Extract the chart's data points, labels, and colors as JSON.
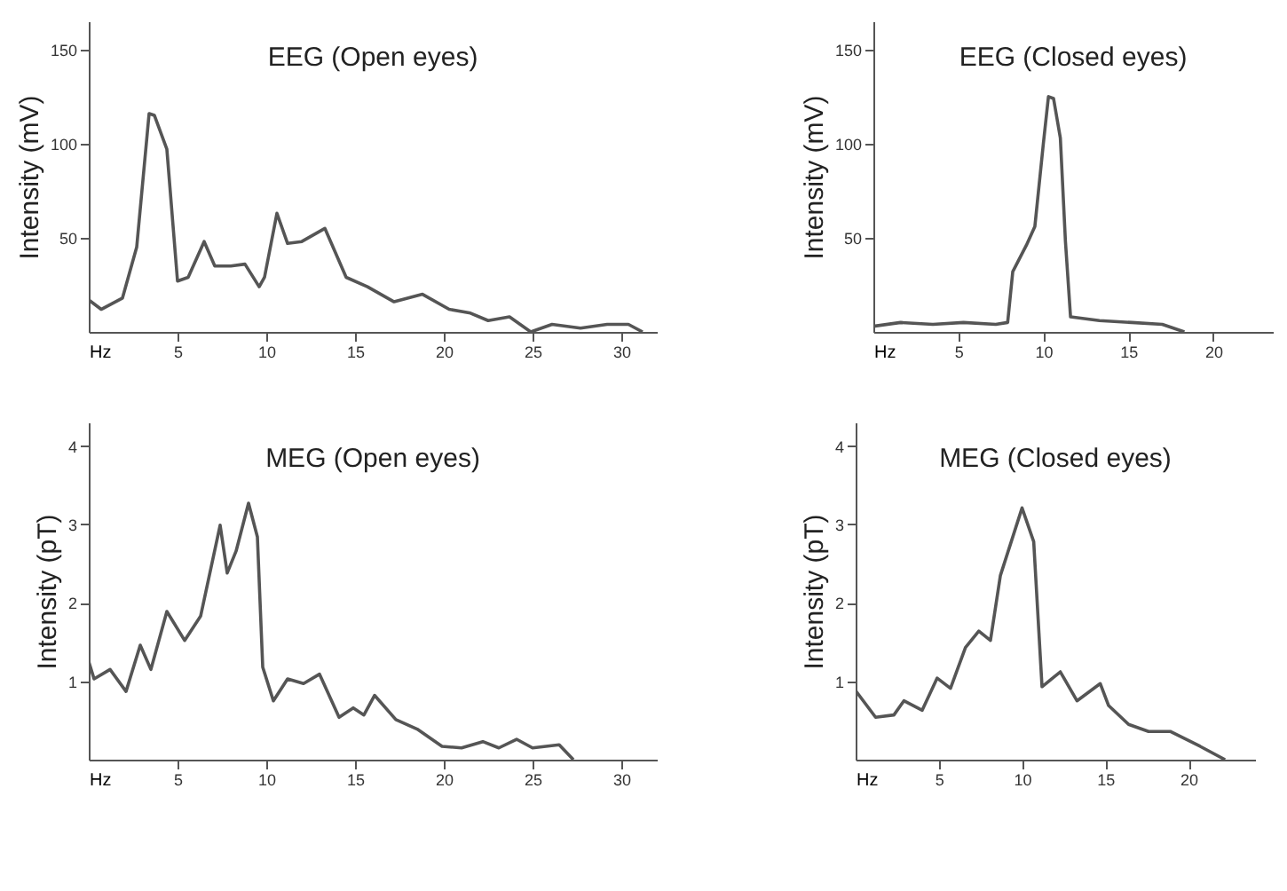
{
  "chart_data": [
    {
      "type": "line",
      "title": "EEG (Open eyes)",
      "xlabel": "Hz",
      "ylabel": "Intensity (mV)",
      "xlim": [
        0,
        32
      ],
      "xticks": [
        5,
        10,
        15,
        20,
        25,
        30
      ],
      "ylim": [
        0,
        165
      ],
      "yticks": [
        50,
        100,
        150
      ],
      "grid": false,
      "marker": "none",
      "line_style": "solid",
      "series": [
        {
          "color": "#555555",
          "x": [
            0,
            0.7,
            1.9,
            2.7,
            3.4,
            3.7,
            4.4,
            5.0,
            5.6,
            6.5,
            7.1,
            8.0,
            8.8,
            9.6,
            9.9,
            10.6,
            11.2,
            12.0,
            13.3,
            14.5,
            15.7,
            17.2,
            18.8,
            20.3,
            21.5,
            22.5,
            23.7,
            24.9,
            26.1,
            27.7,
            29.2,
            30.4,
            31.2
          ],
          "values": [
            17,
            12,
            18,
            45,
            116,
            115,
            97,
            27,
            29,
            48,
            35,
            35,
            36,
            24,
            29,
            63,
            47,
            48,
            55,
            29,
            24,
            16,
            20,
            12,
            10,
            6,
            8,
            0,
            4,
            2,
            4,
            4,
            0
          ]
        }
      ]
    },
    {
      "type": "line",
      "title": "EEG (Closed eyes)",
      "xlabel": "Hz",
      "ylabel": "Intensity (mV)",
      "xlim": [
        0,
        23.5
      ],
      "xticks": [
        5,
        10,
        15,
        20
      ],
      "ylim": [
        0,
        165
      ],
      "yticks": [
        50,
        100,
        150
      ],
      "grid": false,
      "marker": "none",
      "line_style": "solid",
      "series": [
        {
          "color": "#555555",
          "x": [
            0,
            1.6,
            3.5,
            5.3,
            7.2,
            7.9,
            8.2,
            9.0,
            9.5,
            10.0,
            10.3,
            10.6,
            11.0,
            11.3,
            11.6,
            13.3,
            15.2,
            17.0,
            18.3
          ],
          "values": [
            3,
            5,
            4,
            5,
            4,
            5,
            32,
            46,
            56,
            100,
            125,
            124,
            103,
            48,
            8,
            6,
            5,
            4,
            0
          ]
        }
      ]
    },
    {
      "type": "line",
      "title": "MEG (Open eyes)",
      "xlabel": "Hz",
      "ylabel": "Intensity (pT)",
      "xlim": [
        0,
        32
      ],
      "xticks": [
        5,
        10,
        15,
        20,
        25,
        30
      ],
      "ylim": [
        0,
        4.3
      ],
      "yticks": [
        1,
        2,
        3,
        4
      ],
      "grid": false,
      "marker": "none",
      "line_style": "solid",
      "series": [
        {
          "color": "#555555",
          "x": [
            0,
            0.3,
            1.2,
            2.1,
            2.9,
            3.5,
            4.4,
            5.4,
            6.3,
            7.4,
            7.8,
            8.3,
            9.0,
            9.5,
            9.8,
            10.4,
            11.2,
            12.1,
            13.0,
            14.1,
            14.9,
            15.5,
            16.1,
            17.3,
            18.5,
            19.9,
            21.0,
            22.2,
            23.1,
            24.1,
            25.0,
            26.5,
            27.3
          ],
          "values": [
            1.25,
            1.03,
            1.15,
            0.87,
            1.46,
            1.15,
            1.89,
            1.52,
            1.83,
            2.99,
            2.38,
            2.66,
            3.27,
            2.84,
            1.18,
            0.75,
            1.03,
            0.97,
            1.09,
            0.54,
            0.66,
            0.57,
            0.82,
            0.51,
            0.39,
            0.17,
            0.15,
            0.23,
            0.15,
            0.26,
            0.15,
            0.19,
            0
          ]
        }
      ]
    },
    {
      "type": "line",
      "title": "MEG (Closed eyes)",
      "xlabel": "Hz",
      "ylabel": "Intensity (pT)",
      "xlim": [
        0,
        24
      ],
      "xticks": [
        5,
        10,
        15,
        20
      ],
      "ylim": [
        0,
        4.3
      ],
      "yticks": [
        1,
        2,
        3,
        4
      ],
      "grid": false,
      "marker": "none",
      "line_style": "solid",
      "series": [
        {
          "color": "#555555",
          "x": [
            0,
            1.2,
            2.3,
            2.9,
            4.0,
            4.9,
            5.7,
            6.6,
            7.4,
            8.1,
            8.7,
            10.0,
            10.7,
            11.2,
            12.3,
            13.3,
            14.7,
            15.2,
            16.4,
            17.6,
            18.9,
            20.7,
            22.2
          ],
          "values": [
            0.88,
            0.54,
            0.57,
            0.75,
            0.63,
            1.04,
            0.91,
            1.43,
            1.64,
            1.52,
            2.35,
            3.21,
            2.78,
            0.93,
            1.12,
            0.75,
            0.97,
            0.69,
            0.45,
            0.36,
            0.36,
            0.17,
            0
          ]
        }
      ]
    }
  ]
}
